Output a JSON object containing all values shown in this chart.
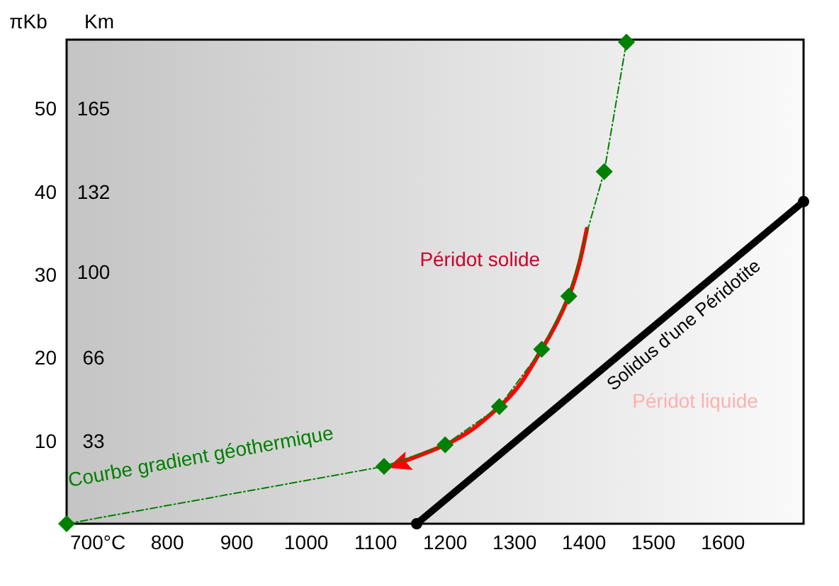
{
  "chart_data": {
    "type": "line",
    "ylabel": "πKb",
    "y2label": "Km",
    "xlim": [
      655,
      1716
    ],
    "xticks": [
      {
        "value": 700,
        "label": "700°C"
      },
      800,
      900,
      1000,
      1100,
      1200,
      1300,
      1400,
      1500,
      1600
    ],
    "ylim": [
      0,
      58.3
    ],
    "yticks": [
      10,
      20,
      30,
      40,
      50
    ],
    "y2lim": [
      0,
      192.4
    ],
    "y2ticks": [
      33,
      66,
      100,
      132,
      165
    ],
    "series": [
      {
        "name": "Courbe gradient géothermique",
        "color": "#008000",
        "marker": "diamond",
        "line_style": "dashed",
        "x": [
          655,
          1112,
          1200,
          1278,
          1339,
          1378,
          1429,
          1461
        ],
        "values": [
          0,
          6.9,
          9.5,
          14.1,
          21,
          27.4,
          42.4,
          58
        ]
      },
      {
        "name": "Solidus d'une Péridotite",
        "color": "#000000",
        "marker": "circle",
        "line_style": "solid",
        "x": [
          1159,
          1716
        ],
        "values": [
          0,
          38.8
        ]
      }
    ],
    "annotations": [
      "Péridot solide",
      "Péridot liquide"
    ],
    "grid": false
  }
}
